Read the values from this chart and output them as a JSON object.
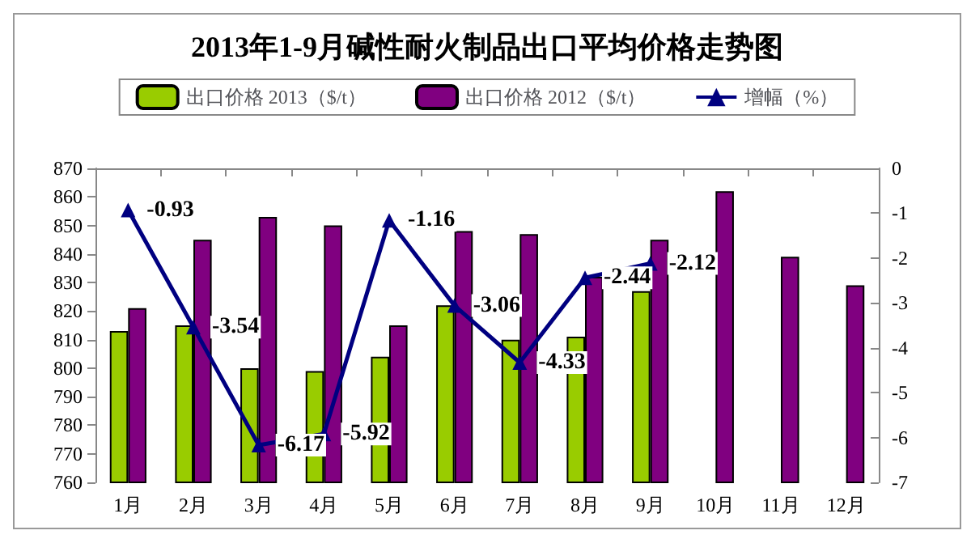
{
  "chart_data": {
    "type": "bar",
    "title": "2013年1-9月碱性耐火制品出口平均价格走势图",
    "categories": [
      "1月",
      "2月",
      "3月",
      "4月",
      "5月",
      "6月",
      "7月",
      "8月",
      "9月",
      "10月",
      "11月",
      "12月"
    ],
    "series": [
      {
        "name": "出口价格 2013（$/t）",
        "color": "#99cc00",
        "values": [
          813,
          815,
          800,
          799,
          804,
          822,
          810,
          811,
          827,
          null,
          null,
          null
        ]
      },
      {
        "name": "出口价格 2012（$/t）",
        "color": "#800080",
        "values": [
          821,
          845,
          853,
          850,
          815,
          848,
          847,
          832,
          845,
          862,
          839,
          829
        ]
      },
      {
        "name": "增幅（%）",
        "type": "line",
        "axis": "y2",
        "color": "#000080",
        "marker": "triangle",
        "data_labels": true,
        "values": [
          -0.93,
          -3.54,
          -6.17,
          -5.92,
          -1.16,
          -3.06,
          -4.33,
          -2.44,
          -2.12,
          null,
          null,
          null
        ]
      }
    ],
    "ylim": [
      760,
      870
    ],
    "yticks": [
      760,
      770,
      780,
      790,
      800,
      810,
      820,
      830,
      840,
      850,
      860,
      870
    ],
    "y2lim": [
      -7,
      0
    ],
    "y2ticks": [
      -7,
      -6,
      -5,
      -4,
      -3,
      -2,
      -1,
      0
    ],
    "legend": "top",
    "grid": false
  }
}
